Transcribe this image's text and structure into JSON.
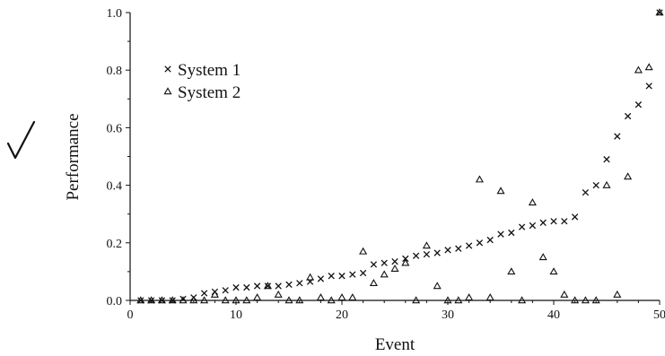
{
  "chart_data": {
    "type": "scatter",
    "xlabel": "Event",
    "ylabel": "Performance",
    "xlim": [
      0,
      50
    ],
    "ylim": [
      0,
      1.0
    ],
    "xticks": [
      0,
      10,
      20,
      30,
      40,
      50
    ],
    "yticks": [
      "0.0",
      "0.2",
      "0.4",
      "0.6",
      "0.8",
      "1.0"
    ],
    "grid": false,
    "legend_position": "top-left",
    "series": [
      {
        "name": "System 1",
        "marker": "x",
        "x": [
          1,
          2,
          3,
          4,
          5,
          6,
          7,
          8,
          9,
          10,
          11,
          12,
          13,
          14,
          15,
          16,
          17,
          18,
          19,
          20,
          21,
          22,
          23,
          24,
          25,
          26,
          27,
          28,
          29,
          30,
          31,
          32,
          33,
          34,
          35,
          36,
          37,
          38,
          39,
          40,
          41,
          42,
          43,
          44,
          45,
          46,
          47,
          48,
          49,
          50
        ],
        "y": [
          0.0,
          0.0,
          0.0,
          0.0,
          0.005,
          0.01,
          0.025,
          0.03,
          0.035,
          0.045,
          0.045,
          0.05,
          0.05,
          0.05,
          0.055,
          0.06,
          0.065,
          0.075,
          0.085,
          0.085,
          0.09,
          0.095,
          0.125,
          0.13,
          0.135,
          0.145,
          0.155,
          0.16,
          0.165,
          0.175,
          0.18,
          0.19,
          0.2,
          0.21,
          0.23,
          0.235,
          0.255,
          0.26,
          0.27,
          0.275,
          0.275,
          0.29,
          0.375,
          0.4,
          0.49,
          0.57,
          0.64,
          0.68,
          0.745,
          1.0
        ]
      },
      {
        "name": "System 2",
        "marker": "triangle",
        "x": [
          1,
          2,
          3,
          4,
          5,
          6,
          7,
          8,
          9,
          10,
          11,
          12,
          13,
          14,
          15,
          16,
          17,
          18,
          19,
          20,
          21,
          22,
          23,
          24,
          25,
          26,
          27,
          28,
          29,
          30,
          31,
          32,
          33,
          34,
          35,
          36,
          37,
          38,
          39,
          40,
          41,
          42,
          43,
          44,
          45,
          46,
          47,
          48,
          49,
          50
        ],
        "y": [
          0.0,
          0.0,
          0.0,
          0.0,
          0.0,
          0.0,
          0.0,
          0.02,
          0.0,
          0.0,
          0.0,
          0.01,
          0.05,
          0.02,
          0.0,
          0.0,
          0.08,
          0.01,
          0.0,
          0.01,
          0.01,
          0.17,
          0.06,
          0.09,
          0.11,
          0.13,
          0.0,
          0.19,
          0.05,
          0.0,
          0.0,
          0.01,
          0.42,
          0.01,
          0.38,
          0.1,
          0.0,
          0.34,
          0.15,
          0.1,
          0.02,
          0.0,
          0.0,
          0.0,
          0.4,
          0.02,
          0.43,
          0.8,
          0.81,
          1.0
        ]
      }
    ]
  }
}
